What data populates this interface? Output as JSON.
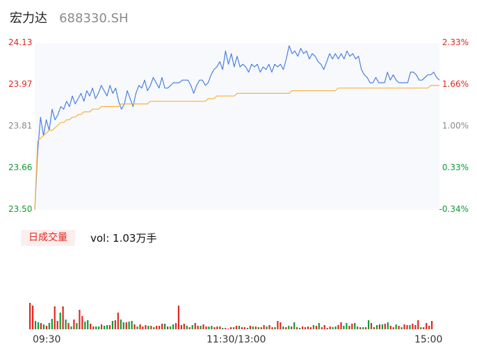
{
  "header": {
    "name": "宏力达",
    "code": "688330.SH"
  },
  "colors": {
    "up": "#e1261c",
    "down": "#0e9a37",
    "neutral": "#8a8a8a",
    "price_line": "#4a7fe0",
    "avg_line": "#f5b33a"
  },
  "price_axis": {
    "left_ticks": [
      "24.13",
      "23.97",
      "23.81",
      "23.66",
      "23.50"
    ],
    "right_ticks": [
      "2.33%",
      "1.66%",
      "1.00%",
      "0.33%",
      "-0.34%"
    ],
    "tick_colors": [
      "#e1261c",
      "#e1261c",
      "#8a8a8a",
      "#0e9a37",
      "#0e9a37"
    ]
  },
  "volume_legend": {
    "badge": "日成交量",
    "text": "vol: 1.03万手"
  },
  "x_ticks": [
    "09:30",
    "11:30/13:00",
    "15:00"
  ],
  "chart_data": [
    {
      "type": "line",
      "x_ticks": [
        "09:30",
        "11:30/13:00",
        "15:00"
      ],
      "ylim": [
        23.5,
        24.13
      ],
      "y_ticks": [
        24.13,
        23.97,
        23.81,
        23.66,
        23.5
      ],
      "y_ticks_right": [
        "2.33%",
        "1.66%",
        "1.00%",
        "0.33%",
        "-0.34%"
      ],
      "series": [
        {
          "values": [
            23.5,
            23.72,
            23.85,
            23.78,
            23.84,
            23.8,
            23.88,
            23.84,
            23.86,
            23.89,
            23.88,
            23.91,
            23.89,
            23.93,
            23.9,
            23.92,
            23.94,
            23.91,
            23.95,
            23.93,
            23.96,
            23.92,
            23.94,
            23.97,
            23.95,
            23.93,
            23.97,
            23.94,
            23.96,
            23.91,
            23.88,
            23.9,
            23.95,
            23.92,
            23.89,
            23.94,
            23.97,
            23.96,
            23.99,
            23.95,
            23.97,
            24.0,
            23.98,
            23.96,
            24.0,
            23.96,
            23.96,
            23.97,
            23.98,
            23.98,
            23.98,
            23.99,
            23.99,
            23.99,
            23.97,
            23.94,
            23.97,
            23.99,
            23.99,
            23.97,
            23.98,
            24.01,
            24.03,
            24.04,
            24.06,
            24.03,
            24.1,
            24.05,
            24.09,
            24.04,
            24.08,
            24.04,
            24.05,
            24.04,
            24.02,
            24.05,
            24.04,
            24.05,
            24.02,
            24.04,
            24.03,
            24.05,
            24.02,
            24.05,
            24.04,
            24.05,
            24.03,
            24.07,
            24.12,
            24.09,
            24.1,
            24.08,
            24.11,
            24.09,
            24.1,
            24.07,
            24.09,
            24.08,
            24.06,
            24.05,
            24.03,
            24.06,
            24.09,
            24.07,
            24.09,
            24.07,
            24.09,
            24.07,
            24.1,
            24.08,
            24.09,
            24.07,
            24.08,
            24.03,
            24.01,
            24.0,
            23.98,
            23.98,
            24.0,
            23.98,
            23.98,
            23.98,
            24.02,
            23.99,
            24.01,
            23.99,
            23.98,
            23.98,
            23.98,
            23.98,
            24.02,
            24.02,
            24.01,
            23.99,
            23.99,
            24.0,
            24.01,
            24.01,
            24.02,
            24.0,
            23.99
          ]
        },
        {
          "values": [
            23.5,
            23.76,
            23.77,
            23.78,
            23.79,
            23.8,
            23.8,
            23.81,
            23.82,
            23.83,
            23.83,
            23.84,
            23.84,
            23.85,
            23.85,
            23.86,
            23.86,
            23.87,
            23.87,
            23.87,
            23.88,
            23.88,
            23.88,
            23.89,
            23.89,
            23.89,
            23.89,
            23.89,
            23.89,
            23.89,
            23.9,
            23.9,
            23.9,
            23.9,
            23.9,
            23.9,
            23.9,
            23.9,
            23.9,
            23.9,
            23.91,
            23.91,
            23.91,
            23.91,
            23.91,
            23.91,
            23.91,
            23.91,
            23.91,
            23.91,
            23.91,
            23.91,
            23.91,
            23.91,
            23.91,
            23.91,
            23.91,
            23.91,
            23.91,
            23.91,
            23.92,
            23.92,
            23.92,
            23.93,
            23.93,
            23.93,
            23.93,
            23.93,
            23.93,
            23.93,
            23.94,
            23.94,
            23.94,
            23.94,
            23.94,
            23.94,
            23.94,
            23.94,
            23.94,
            23.94,
            23.94,
            23.94,
            23.94,
            23.94,
            23.94,
            23.94,
            23.94,
            23.94,
            23.94,
            23.95,
            23.95,
            23.95,
            23.95,
            23.95,
            23.95,
            23.95,
            23.95,
            23.95,
            23.95,
            23.95,
            23.95,
            23.95,
            23.95,
            23.95,
            23.95,
            23.96,
            23.96,
            23.96,
            23.96,
            23.96,
            23.96,
            23.96,
            23.96,
            23.96,
            23.96,
            23.96,
            23.96,
            23.96,
            23.96,
            23.96,
            23.96,
            23.96,
            23.96,
            23.96,
            23.96,
            23.96,
            23.96,
            23.96,
            23.96,
            23.96,
            23.96,
            23.96,
            23.96,
            23.96,
            23.96,
            23.96,
            23.96,
            23.97,
            23.97,
            23.97,
            23.97
          ]
        }
      ]
    },
    {
      "type": "bar",
      "title": "日成交量",
      "vol_summary": "vol: 1.03万手",
      "x_ticks": [
        "09:30",
        "11:30/13:00",
        "15:00"
      ],
      "ylim": [
        0,
        100
      ],
      "values": [
        38,
        34,
        12,
        10,
        9,
        7,
        5,
        9,
        15,
        33,
        12,
        24,
        33,
        14,
        9,
        4,
        14,
        9,
        28,
        19,
        11,
        13,
        8,
        4,
        4,
        4,
        7,
        5,
        6,
        6,
        12,
        13,
        24,
        14,
        10,
        10,
        11,
        12,
        7,
        4,
        7,
        4,
        6,
        5,
        5,
        3,
        5,
        5,
        8,
        8,
        4,
        4,
        7,
        9,
        34,
        6,
        8,
        5,
        3,
        6,
        9,
        5,
        5,
        7,
        4,
        4,
        5,
        3,
        4,
        4,
        2,
        2,
        1,
        3,
        3,
        5,
        5,
        3,
        3,
        2,
        5,
        4,
        4,
        3,
        3,
        6,
        4,
        6,
        3,
        3,
        12,
        10,
        4,
        3,
        5,
        4,
        10,
        3,
        2,
        4,
        3,
        4,
        3,
        6,
        5,
        9,
        3,
        6,
        2,
        4,
        3,
        4,
        6,
        10,
        5,
        9,
        5,
        8,
        9,
        4,
        3,
        3,
        3,
        13,
        9,
        3,
        6,
        7,
        7,
        8,
        10,
        5,
        3,
        7,
        5,
        3,
        7,
        6,
        6,
        8,
        6,
        13,
        3,
        3,
        9,
        5,
        12
      ],
      "colors": [
        "up",
        "up",
        "down",
        "down",
        "up",
        "down",
        "up",
        "down",
        "down",
        "up",
        "up",
        "down",
        "up",
        "down",
        "up",
        "down",
        "up",
        "down",
        "up",
        "up",
        "down",
        "down",
        "up",
        "up",
        "down",
        "down",
        "up",
        "down",
        "down",
        "up",
        "down",
        "up",
        "up",
        "down",
        "down",
        "up",
        "down",
        "down",
        "up",
        "down",
        "up",
        "up",
        "up",
        "down",
        "up",
        "down",
        "up",
        "up",
        "up",
        "down",
        "up",
        "down",
        "down",
        "up",
        "up",
        "up",
        "up",
        "down",
        "up",
        "down",
        "up",
        "up",
        "down",
        "up",
        "up",
        "down",
        "down",
        "up",
        "up",
        "up",
        "down",
        "up",
        "up",
        "up",
        "down",
        "up",
        "down",
        "up",
        "up",
        "down",
        "up",
        "down",
        "up",
        "down",
        "up",
        "up",
        "down",
        "up",
        "up",
        "down",
        "up",
        "up",
        "down",
        "up",
        "down",
        "up",
        "down",
        "up",
        "down",
        "up",
        "up",
        "up",
        "up",
        "down",
        "up",
        "down",
        "up",
        "up",
        "up",
        "up",
        "down",
        "down",
        "up",
        "up",
        "down",
        "down",
        "up",
        "up",
        "down",
        "down",
        "up",
        "down",
        "up",
        "down",
        "up",
        "up",
        "down",
        "up",
        "down",
        "up",
        "down",
        "up",
        "up",
        "down",
        "up",
        "down",
        "up",
        "up",
        "down",
        "up",
        "up",
        "up",
        "down",
        "up",
        "up",
        "up",
        "up"
      ]
    }
  ]
}
